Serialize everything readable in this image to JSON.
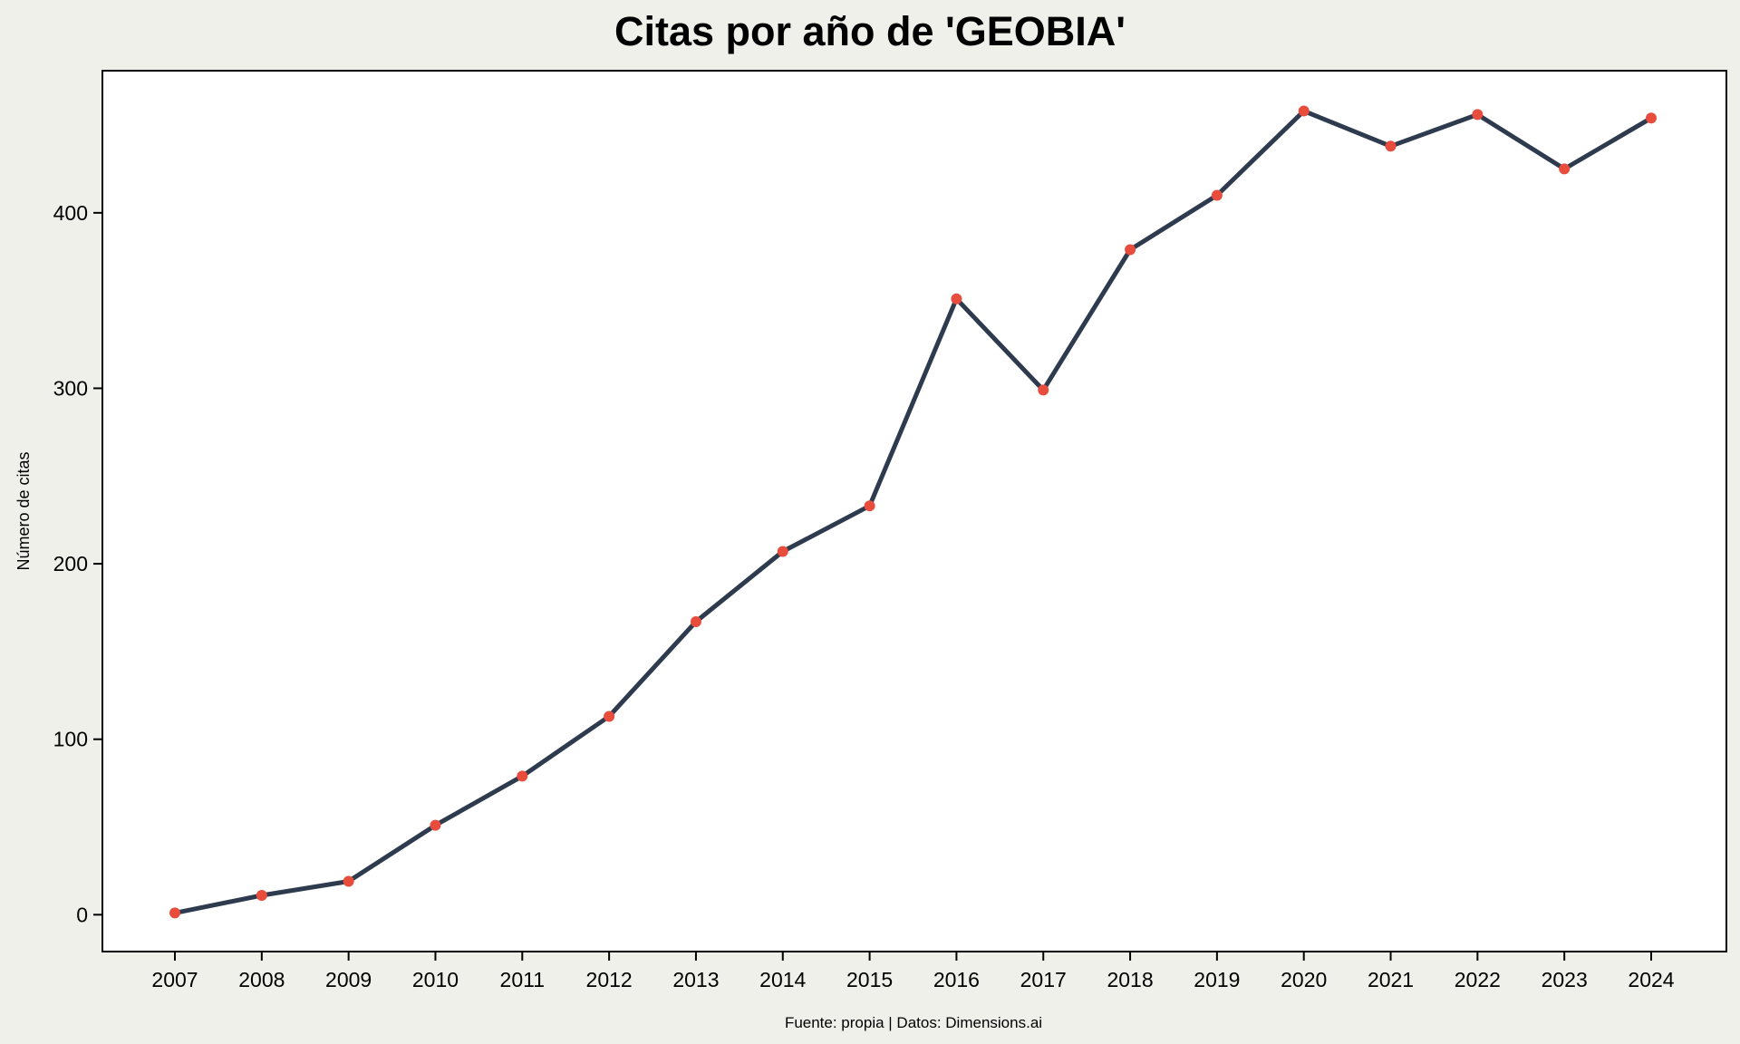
{
  "chart_data": {
    "type": "line",
    "title": "Citas por año de 'GEOBIA'",
    "xlabel": "",
    "ylabel": "Número de citas",
    "caption": "Fuente: propia | Datos: Dimensions.ai",
    "categories": [
      "2007",
      "2008",
      "2009",
      "2010",
      "2011",
      "2012",
      "2013",
      "2014",
      "2015",
      "2016",
      "2017",
      "2018",
      "2019",
      "2020",
      "2021",
      "2022",
      "2023",
      "2024"
    ],
    "series": [
      {
        "values": [
          1,
          11,
          19,
          51,
          79,
          113,
          167,
          207,
          233,
          351,
          299,
          379,
          410,
          458,
          438,
          456,
          425,
          454
        ]
      }
    ],
    "yticks": [
      0,
      100,
      200,
      300,
      400
    ],
    "ylim": [
      -21,
      481
    ],
    "grid": false,
    "legend": "none",
    "colors": {
      "line": "#2e3b4e",
      "marker": "#e74c3c",
      "plot_background": "#ffffff",
      "page_background": "#f0f0eb"
    }
  }
}
